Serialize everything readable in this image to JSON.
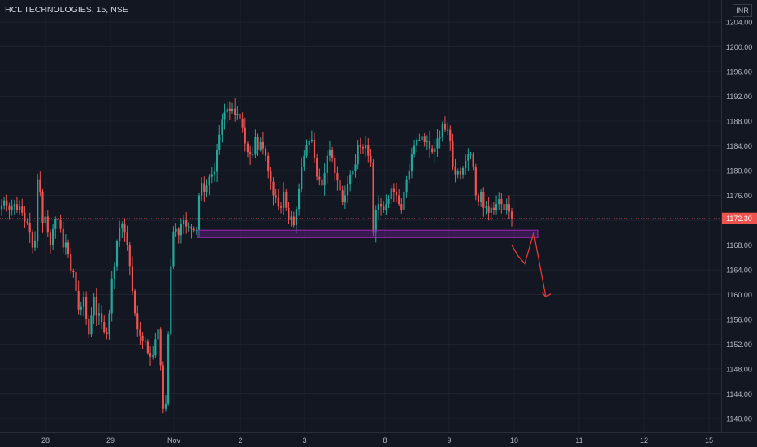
{
  "header": {
    "title": "HCL TECHNOLOGIES, 15, NSE"
  },
  "currency": "INR",
  "chart_data": {
    "type": "candlestick",
    "title": "HCL TECHNOLOGIES, 15, NSE",
    "ylim": [
      1138,
      1207
    ],
    "yticks": [
      1140,
      1144,
      1148,
      1152,
      1156,
      1160,
      1164,
      1168,
      1172,
      1176,
      1180,
      1184,
      1188,
      1192,
      1196,
      1200,
      1204
    ],
    "ytick_labels": [
      "1140.00",
      "1144.00",
      "1148.00",
      "1152.00",
      "1156.00",
      "1160.00",
      "1164.00",
      "1168.00",
      "1172.00",
      "1176.00",
      "1180.00",
      "1184.00",
      "1188.00",
      "1192.00",
      "1196.00",
      "1200.00",
      "1204.00"
    ],
    "xticks": [
      "28",
      "29",
      "Nov",
      "2",
      "3",
      "8",
      "9",
      "10",
      "11",
      "12",
      "15"
    ],
    "last_price": "1172.30",
    "last_price_value": 1172.3,
    "close_series": [
      1174.4,
      1175.2,
      1174.4,
      1173.6,
      1174.2,
      1174.6,
      1173.6,
      1174.2,
      1173.2,
      1171.8,
      1171.6,
      1170.0,
      1167.6,
      1168.6,
      1178.6,
      1176.6,
      1171.6,
      1172.6,
      1170.0,
      1168.0,
      1170.6,
      1172.2,
      1172.0,
      1170.6,
      1167.6,
      1168.4,
      1166.6,
      1163.8,
      1163.6,
      1160.6,
      1157.6,
      1158.0,
      1159.6,
      1156.0,
      1153.6,
      1156.6,
      1159.6,
      1156.6,
      1157.0,
      1155.6,
      1154.0,
      1153.6,
      1157.0,
      1162.6,
      1164.6,
      1168.6,
      1170.8,
      1171.4,
      1170.0,
      1168.0,
      1164.6,
      1160.6,
      1157.0,
      1154.4,
      1153.4,
      1152.6,
      1152.4,
      1150.6,
      1150.0,
      1150.2,
      1152.8,
      1154.4,
      1148.6,
      1141.6,
      1142.4,
      1153.6,
      1164.6,
      1170.2,
      1170.6,
      1169.6,
      1171.4,
      1172.0,
      1171.0,
      1171.0,
      1170.6,
      1170.4,
      1170.4,
      1176.0,
      1178.0,
      1176.6,
      1177.6,
      1179.0,
      1179.4,
      1179.8,
      1183.4,
      1185.8,
      1188.2,
      1189.4,
      1190.0,
      1189.6,
      1190.0,
      1189.0,
      1189.2,
      1188.4,
      1187.0,
      1184.4,
      1183.0,
      1182.6,
      1182.6,
      1185.4,
      1183.4,
      1184.6,
      1183.6,
      1182.4,
      1180.0,
      1178.2,
      1176.0,
      1175.6,
      1174.2,
      1174.0,
      1176.6,
      1174.0,
      1172.0,
      1172.6,
      1171.2,
      1173.8,
      1177.0,
      1180.6,
      1182.4,
      1184.2,
      1184.8,
      1185.0,
      1182.0,
      1179.0,
      1178.6,
      1177.6,
      1179.6,
      1182.4,
      1183.4,
      1182.0,
      1179.6,
      1178.4,
      1176.8,
      1175.0,
      1176.0,
      1177.8,
      1179.4,
      1180.0,
      1181.0,
      1184.2,
      1183.8,
      1183.6,
      1184.2,
      1182.4,
      1181.4,
      1170.0,
      1173.6,
      1174.6,
      1174.2,
      1173.6,
      1174.6,
      1175.4,
      1177.2,
      1176.6,
      1176.0,
      1174.6,
      1173.6,
      1176.6,
      1178.6,
      1180.0,
      1182.6,
      1184.0,
      1185.0,
      1185.0,
      1185.6,
      1184.6,
      1184.8,
      1183.6,
      1183.0,
      1183.6,
      1185.2,
      1185.4,
      1187.6,
      1186.6,
      1186.6,
      1184.8,
      1180.6,
      1179.4,
      1180.0,
      1179.4,
      1180.4,
      1181.6,
      1182.6,
      1182.6,
      1180.6,
      1176.0,
      1175.0,
      1176.6,
      1174.0,
      1174.2,
      1173.2,
      1174.0,
      1173.6,
      1174.6,
      1175.4,
      1174.6,
      1173.6,
      1174.6,
      1173.4,
      1172.3
    ],
    "support_zone": {
      "y_low": 1169.2,
      "y_high": 1170.4,
      "x_start_day": "Nov",
      "x_end_day": "10"
    },
    "projection": [
      1168.0,
      1166.2,
      1165.0,
      1170.0,
      1159.6
    ]
  }
}
